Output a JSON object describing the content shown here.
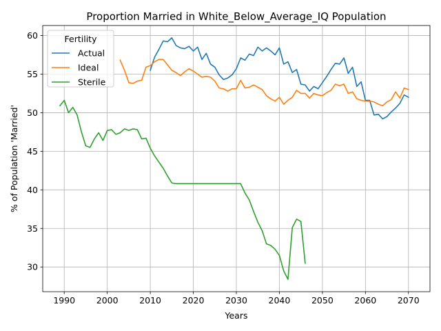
{
  "chart_data": {
    "type": "line",
    "title": "Proportion Married in White_Below_Average_IQ Population",
    "xlabel": "Years",
    "ylabel": "% of Population 'Married'",
    "xlim": [
      1985,
      2075
    ],
    "ylim": [
      26.8,
      61.3
    ],
    "xticks": [
      1990,
      2000,
      2010,
      2020,
      2030,
      2040,
      2050,
      2060,
      2070
    ],
    "yticks": [
      30,
      35,
      40,
      45,
      50,
      55,
      60
    ],
    "grid": true,
    "legend": {
      "title": "Fertility",
      "placement": "top-left"
    },
    "series": [
      {
        "name": "Actual",
        "color": "#1f77b4",
        "points": [
          [
            2010,
            55.5
          ],
          [
            2011,
            57.2
          ],
          [
            2012,
            58.2
          ],
          [
            2013,
            59.3
          ],
          [
            2014,
            59.2
          ],
          [
            2015,
            59.7
          ],
          [
            2016,
            58.7
          ],
          [
            2017,
            58.4
          ],
          [
            2018,
            58.3
          ],
          [
            2019,
            58.6
          ],
          [
            2020,
            58.0
          ],
          [
            2021,
            58.5
          ],
          [
            2022,
            56.9
          ],
          [
            2023,
            57.7
          ],
          [
            2024,
            56.3
          ],
          [
            2025,
            55.9
          ],
          [
            2026,
            54.9
          ],
          [
            2027,
            54.3
          ],
          [
            2028,
            54.5
          ],
          [
            2029,
            54.9
          ],
          [
            2030,
            55.7
          ],
          [
            2031,
            57.1
          ],
          [
            2032,
            56.8
          ],
          [
            2033,
            57.6
          ],
          [
            2034,
            57.4
          ],
          [
            2035,
            58.5
          ],
          [
            2036,
            58.0
          ],
          [
            2037,
            58.4
          ],
          [
            2038,
            58.0
          ],
          [
            2039,
            57.5
          ],
          [
            2040,
            58.4
          ],
          [
            2041,
            56.3
          ],
          [
            2042,
            56.6
          ],
          [
            2043,
            55.2
          ],
          [
            2044,
            55.6
          ],
          [
            2045,
            53.7
          ],
          [
            2046,
            53.6
          ],
          [
            2047,
            52.8
          ],
          [
            2048,
            53.4
          ],
          [
            2049,
            53.1
          ],
          [
            2050,
            53.9
          ],
          [
            2051,
            54.7
          ],
          [
            2052,
            55.6
          ],
          [
            2053,
            56.4
          ],
          [
            2054,
            56.3
          ],
          [
            2055,
            57.1
          ],
          [
            2056,
            55.1
          ],
          [
            2057,
            55.9
          ],
          [
            2058,
            53.4
          ],
          [
            2059,
            54.0
          ],
          [
            2060,
            51.6
          ],
          [
            2061,
            51.6
          ],
          [
            2062,
            49.7
          ],
          [
            2063,
            49.8
          ],
          [
            2064,
            49.2
          ],
          [
            2065,
            49.5
          ],
          [
            2066,
            50.1
          ],
          [
            2067,
            50.6
          ],
          [
            2068,
            51.2
          ],
          [
            2069,
            52.3
          ],
          [
            2070,
            52.0
          ]
        ]
      },
      {
        "name": "Ideal",
        "color": "#ff7f0e",
        "points": [
          [
            2003,
            56.8
          ],
          [
            2004,
            55.5
          ],
          [
            2005,
            53.9
          ],
          [
            2006,
            53.8
          ],
          [
            2007,
            54.1
          ],
          [
            2008,
            54.2
          ],
          [
            2009,
            55.9
          ],
          [
            2010,
            56.1
          ],
          [
            2011,
            56.6
          ],
          [
            2012,
            56.9
          ],
          [
            2013,
            56.9
          ],
          [
            2014,
            56.2
          ],
          [
            2015,
            55.5
          ],
          [
            2016,
            55.2
          ],
          [
            2017,
            54.8
          ],
          [
            2018,
            55.3
          ],
          [
            2019,
            55.7
          ],
          [
            2020,
            55.4
          ],
          [
            2021,
            55.0
          ],
          [
            2022,
            54.6
          ],
          [
            2023,
            54.7
          ],
          [
            2024,
            54.6
          ],
          [
            2025,
            54.1
          ],
          [
            2026,
            53.2
          ],
          [
            2027,
            53.1
          ],
          [
            2028,
            52.8
          ],
          [
            2029,
            53.1
          ],
          [
            2030,
            53.1
          ],
          [
            2031,
            54.2
          ],
          [
            2032,
            53.2
          ],
          [
            2033,
            53.3
          ],
          [
            2034,
            53.6
          ],
          [
            2035,
            53.3
          ],
          [
            2036,
            53.0
          ],
          [
            2037,
            52.2
          ],
          [
            2038,
            51.8
          ],
          [
            2039,
            51.5
          ],
          [
            2040,
            52.0
          ],
          [
            2041,
            51.1
          ],
          [
            2042,
            51.6
          ],
          [
            2043,
            52.0
          ],
          [
            2044,
            52.9
          ],
          [
            2045,
            52.5
          ],
          [
            2046,
            52.5
          ],
          [
            2047,
            51.9
          ],
          [
            2048,
            52.5
          ],
          [
            2049,
            52.3
          ],
          [
            2050,
            52.2
          ],
          [
            2051,
            52.6
          ],
          [
            2052,
            52.9
          ],
          [
            2053,
            53.7
          ],
          [
            2054,
            53.5
          ],
          [
            2055,
            53.7
          ],
          [
            2056,
            52.5
          ],
          [
            2057,
            52.7
          ],
          [
            2058,
            51.8
          ],
          [
            2059,
            51.6
          ],
          [
            2060,
            51.5
          ],
          [
            2061,
            51.5
          ],
          [
            2062,
            51.4
          ],
          [
            2063,
            51.1
          ],
          [
            2064,
            50.9
          ],
          [
            2065,
            51.4
          ],
          [
            2066,
            51.7
          ],
          [
            2067,
            52.7
          ],
          [
            2068,
            51.9
          ],
          [
            2069,
            53.2
          ],
          [
            2070,
            53.0
          ]
        ]
      },
      {
        "name": "Sterile",
        "color": "#2ca02c",
        "points": [
          [
            1989,
            50.9
          ],
          [
            1990,
            51.6
          ],
          [
            1991,
            50.0
          ],
          [
            1992,
            50.7
          ],
          [
            1993,
            49.7
          ],
          [
            1994,
            47.5
          ],
          [
            1995,
            45.7
          ],
          [
            1996,
            45.5
          ],
          [
            1997,
            46.6
          ],
          [
            1998,
            47.4
          ],
          [
            1999,
            46.4
          ],
          [
            2000,
            47.7
          ],
          [
            2001,
            47.8
          ],
          [
            2002,
            47.2
          ],
          [
            2003,
            47.4
          ],
          [
            2004,
            47.9
          ],
          [
            2005,
            47.7
          ],
          [
            2006,
            47.9
          ],
          [
            2007,
            47.8
          ],
          [
            2008,
            46.6
          ],
          [
            2009,
            46.7
          ],
          [
            2010,
            45.4
          ],
          [
            2011,
            44.4
          ],
          [
            2012,
            43.6
          ],
          [
            2013,
            42.8
          ],
          [
            2014,
            41.8
          ],
          [
            2015,
            40.9
          ],
          [
            2016,
            40.8
          ],
          [
            2017,
            40.8
          ],
          [
            2018,
            40.8
          ],
          [
            2019,
            40.8
          ],
          [
            2020,
            40.8
          ],
          [
            2021,
            40.8
          ],
          [
            2022,
            40.8
          ],
          [
            2023,
            40.8
          ],
          [
            2024,
            40.8
          ],
          [
            2025,
            40.8
          ],
          [
            2026,
            40.8
          ],
          [
            2027,
            40.8
          ],
          [
            2028,
            40.8
          ],
          [
            2029,
            40.8
          ],
          [
            2030,
            40.8
          ],
          [
            2031,
            40.8
          ],
          [
            2032,
            39.6
          ],
          [
            2033,
            38.7
          ],
          [
            2034,
            37.2
          ],
          [
            2035,
            35.8
          ],
          [
            2036,
            34.7
          ],
          [
            2037,
            33.0
          ],
          [
            2038,
            32.8
          ],
          [
            2039,
            32.3
          ],
          [
            2040,
            31.5
          ],
          [
            2041,
            29.5
          ],
          [
            2042,
            28.4
          ],
          [
            2043,
            35.1
          ],
          [
            2044,
            36.2
          ],
          [
            2045,
            35.9
          ],
          [
            2046,
            30.5
          ]
        ]
      }
    ]
  }
}
